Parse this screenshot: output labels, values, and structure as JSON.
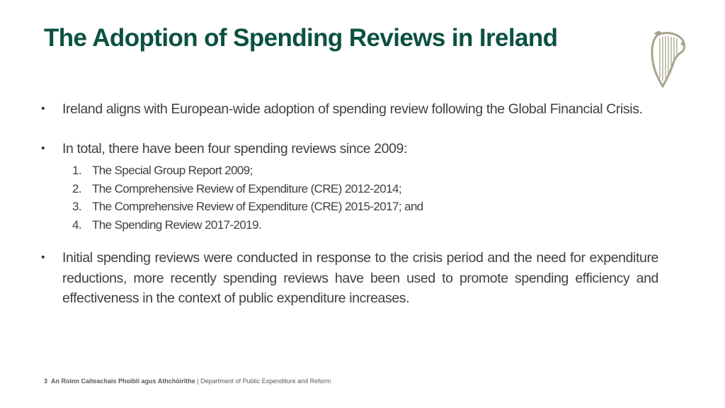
{
  "title": "The Adoption of Spending Reviews in Ireland",
  "logo": {
    "icon": "harp-emblem-icon",
    "color": "#a7a58c"
  },
  "bullets": [
    {
      "text": "Ireland aligns with European-wide adoption of spending review following the Global Financial Crisis."
    },
    {
      "text": "In total, there have been four spending reviews since 2009:",
      "items": [
        {
          "num": "1.",
          "text": "The Special Group Report 2009;"
        },
        {
          "num": "2.",
          "text": "The Comprehensive Review of Expenditure (CRE) 2012-2014;"
        },
        {
          "num": "3.",
          "text": "The Comprehensive Review of Expenditure (CRE) 2015-2017; and"
        },
        {
          "num": "4.",
          "text": "The Spending Review 2017-2019."
        }
      ]
    },
    {
      "text": "Initial spending reviews were conducted in response to the crisis period and the need for expenditure reductions, more recently spending reviews have been used to promote spending efficiency and effectiveness in the context of public expenditure increases."
    }
  ],
  "bullet_symbol": "•",
  "footer": {
    "page_number": "3",
    "irish_name": "An Roinn Caiteachais Phoiblí agus Athchóirithe",
    "separator": "|",
    "english_name": "Department of Public Expenditure and Reform"
  },
  "colors": {
    "title": "#0b5140",
    "body": "#404040"
  }
}
